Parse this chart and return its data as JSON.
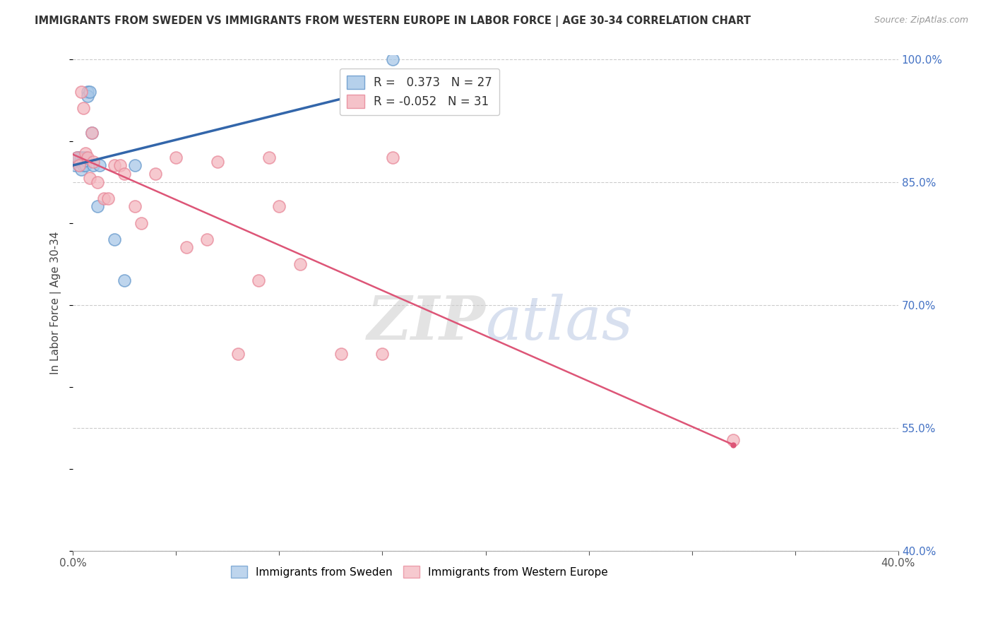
{
  "title": "IMMIGRANTS FROM SWEDEN VS IMMIGRANTS FROM WESTERN EUROPE IN LABOR FORCE | AGE 30-34 CORRELATION CHART",
  "source": "Source: ZipAtlas.com",
  "ylabel": "In Labor Force | Age 30-34",
  "xlim": [
    0.0,
    0.4
  ],
  "ylim": [
    0.4,
    1.005
  ],
  "x_ticks": [
    0.0,
    0.05,
    0.1,
    0.15,
    0.2,
    0.25,
    0.3,
    0.35,
    0.4
  ],
  "y_ticks_right": [
    0.4,
    0.55,
    0.7,
    0.85,
    1.0
  ],
  "y_tick_labels_right": [
    "40.0%",
    "55.0%",
    "70.0%",
    "85.0%",
    "100.0%"
  ],
  "sweden_R": 0.373,
  "sweden_N": 27,
  "western_R": -0.052,
  "western_N": 31,
  "sweden_color": "#a8c8e8",
  "western_color": "#f4b8c0",
  "sweden_edge_color": "#6699cc",
  "western_edge_color": "#e88899",
  "sweden_line_color": "#3366aa",
  "western_line_color": "#dd5577",
  "sweden_x": [
    0.001,
    0.002,
    0.002,
    0.003,
    0.003,
    0.003,
    0.004,
    0.004,
    0.004,
    0.005,
    0.005,
    0.005,
    0.005,
    0.006,
    0.006,
    0.006,
    0.007,
    0.007,
    0.008,
    0.009,
    0.01,
    0.012,
    0.013,
    0.02,
    0.025,
    0.03,
    0.155
  ],
  "sweden_y": [
    0.87,
    0.875,
    0.88,
    0.87,
    0.875,
    0.88,
    0.865,
    0.875,
    0.88,
    0.87,
    0.875,
    0.88,
    0.875,
    0.87,
    0.876,
    0.88,
    0.96,
    0.955,
    0.96,
    0.91,
    0.87,
    0.82,
    0.87,
    0.78,
    0.73,
    0.87,
    1.0
  ],
  "western_x": [
    0.002,
    0.003,
    0.004,
    0.005,
    0.006,
    0.007,
    0.008,
    0.009,
    0.01,
    0.012,
    0.015,
    0.017,
    0.02,
    0.023,
    0.025,
    0.03,
    0.033,
    0.04,
    0.05,
    0.055,
    0.065,
    0.07,
    0.08,
    0.09,
    0.095,
    0.1,
    0.11,
    0.13,
    0.15,
    0.155,
    0.32
  ],
  "western_y": [
    0.88,
    0.87,
    0.96,
    0.94,
    0.885,
    0.88,
    0.855,
    0.91,
    0.875,
    0.85,
    0.83,
    0.83,
    0.87,
    0.87,
    0.86,
    0.82,
    0.8,
    0.86,
    0.88,
    0.77,
    0.78,
    0.875,
    0.64,
    0.73,
    0.88,
    0.82,
    0.75,
    0.64,
    0.64,
    0.88,
    0.535
  ],
  "background_color": "#ffffff",
  "grid_color": "#cccccc",
  "watermark_text": "ZIPatlas"
}
